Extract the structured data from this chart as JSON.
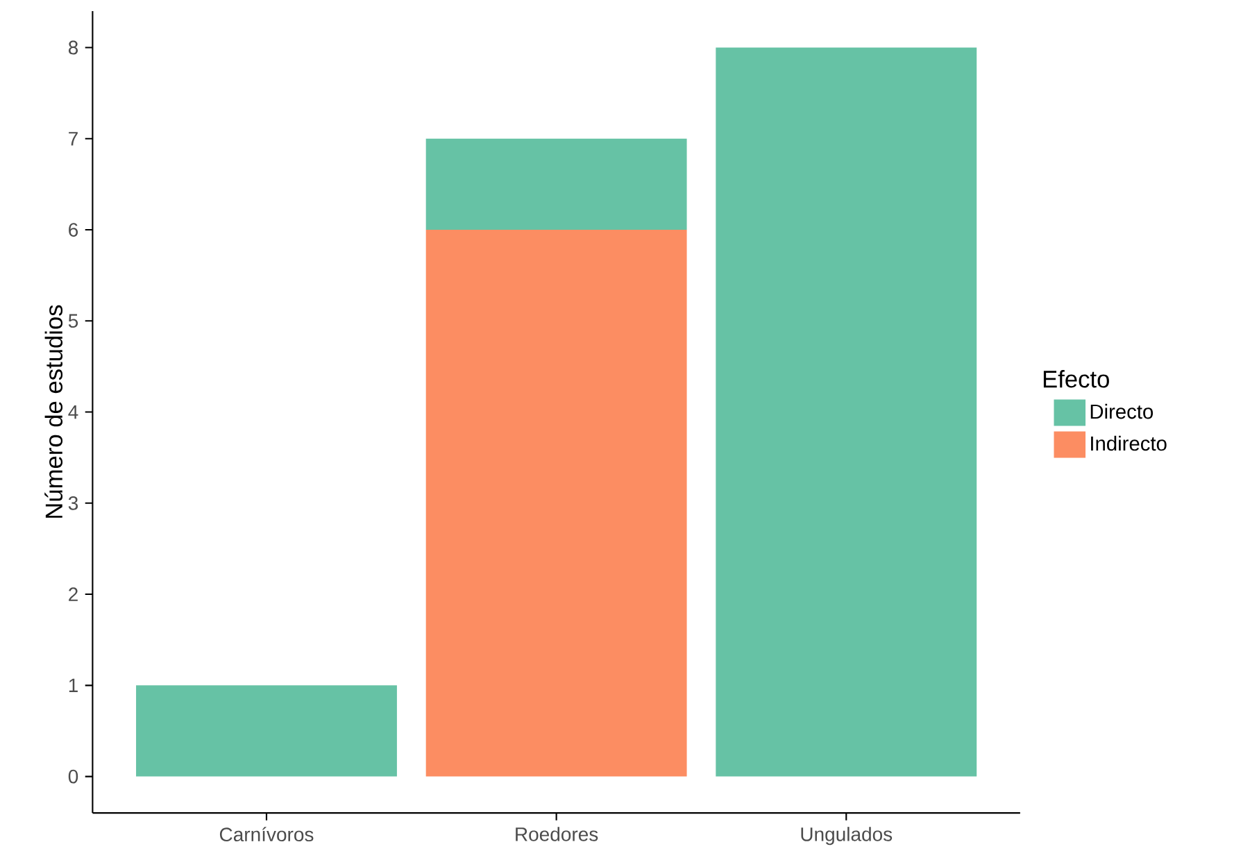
{
  "chart_data": {
    "type": "bar",
    "stacked": true,
    "ylabel": "Número de estudios",
    "legend_title": "Efecto",
    "categories": [
      "Carnívoros",
      "Roedores",
      "Ungulados"
    ],
    "series": [
      {
        "name": "Indirecto",
        "color": "#fc8d62",
        "values": [
          0,
          6,
          0
        ]
      },
      {
        "name": "Directo",
        "color": "#66c2a5",
        "values": [
          1,
          1,
          8
        ]
      }
    ],
    "ylim": [
      -0.4,
      8.4
    ],
    "yticks": [
      0,
      1,
      2,
      3,
      4,
      5,
      6,
      7,
      8
    ],
    "legend": "right",
    "grid": false
  }
}
